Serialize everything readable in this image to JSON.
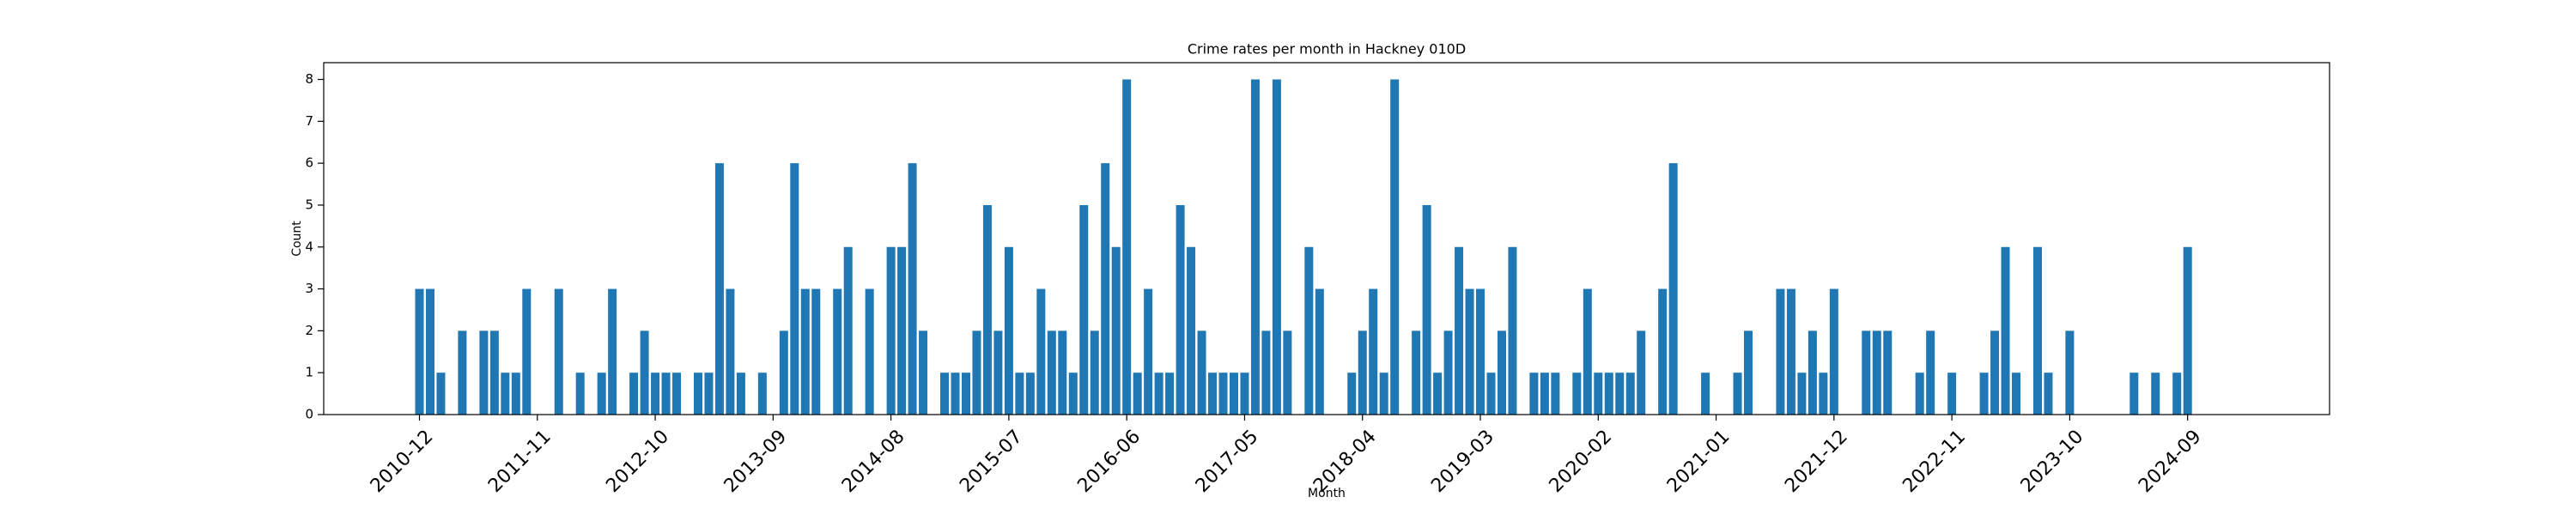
{
  "chart_data": {
    "type": "bar",
    "title": "Crime rates per month in Hackney 010D",
    "xlabel": "Month",
    "ylabel": "Count",
    "color": "#1f77b4",
    "categories": [
      "2010-12",
      null,
      null,
      null,
      null,
      null,
      null,
      null,
      null,
      null,
      null,
      "2011-11",
      null,
      null,
      null,
      null,
      null,
      null,
      null,
      null,
      null,
      null,
      "2012-10",
      null,
      null,
      null,
      null,
      null,
      null,
      null,
      null,
      null,
      null,
      "2013-09",
      null,
      null,
      null,
      null,
      null,
      null,
      null,
      null,
      null,
      null,
      "2014-08",
      null,
      null,
      null,
      null,
      null,
      null,
      null,
      null,
      null,
      null,
      "2015-07",
      null,
      null,
      null,
      null,
      null,
      null,
      null,
      null,
      null,
      null,
      "2016-06",
      null,
      null,
      null,
      null,
      null,
      null,
      null,
      null,
      null,
      null,
      "2017-05",
      null,
      null,
      null,
      null,
      null,
      null,
      null,
      null,
      null,
      null,
      "2018-04",
      null,
      null,
      null,
      null,
      null,
      null,
      null,
      null,
      null,
      null,
      "2019-03",
      null,
      null,
      null,
      null,
      null,
      null,
      null,
      null,
      null,
      null,
      "2020-02",
      null,
      null,
      null,
      null,
      null,
      null,
      null,
      null,
      null,
      null,
      "2021-01",
      null,
      null,
      null,
      null,
      null,
      null,
      null,
      null,
      null,
      null,
      "2021-12",
      null,
      null,
      null,
      null,
      null,
      null,
      null,
      null,
      null,
      null,
      "2022-11",
      null,
      null,
      null,
      null,
      null,
      null,
      null,
      null,
      null,
      null,
      "2023-10",
      null,
      null,
      null,
      null,
      null,
      null,
      null,
      null,
      null,
      null,
      "2024-09"
    ],
    "values": [
      3,
      3,
      1,
      0,
      2,
      0,
      2,
      2,
      1,
      1,
      3,
      0,
      0,
      3,
      0,
      1,
      0,
      1,
      3,
      0,
      1,
      2,
      1,
      1,
      1,
      0,
      1,
      1,
      6,
      3,
      1,
      0,
      1,
      0,
      2,
      6,
      3,
      3,
      0,
      3,
      4,
      0,
      3,
      0,
      4,
      4,
      6,
      2,
      0,
      1,
      1,
      1,
      2,
      5,
      2,
      4,
      1,
      1,
      3,
      2,
      2,
      1,
      5,
      2,
      6,
      4,
      8,
      1,
      3,
      1,
      1,
      5,
      4,
      2,
      1,
      1,
      1,
      1,
      8,
      2,
      8,
      2,
      0,
      4,
      3,
      0,
      0,
      1,
      2,
      3,
      1,
      8,
      0,
      2,
      5,
      1,
      2,
      4,
      3,
      3,
      1,
      2,
      4,
      0,
      1,
      1,
      1,
      0,
      1,
      3,
      1,
      1,
      1,
      1,
      2,
      0,
      3,
      6,
      0,
      0,
      1,
      0,
      0,
      1,
      2,
      0,
      0,
      3,
      3,
      1,
      2,
      1,
      3,
      0,
      0,
      2,
      2,
      2,
      0,
      0,
      1,
      2,
      0,
      1,
      0,
      0,
      1,
      2,
      4,
      1,
      0,
      4,
      1,
      0,
      2,
      0,
      0,
      0,
      0,
      0,
      1,
      0,
      1,
      0,
      1,
      4
    ],
    "ylim": [
      0,
      8.4
    ],
    "yticks": [
      0,
      1,
      2,
      3,
      4,
      5,
      6,
      7,
      8
    ]
  }
}
